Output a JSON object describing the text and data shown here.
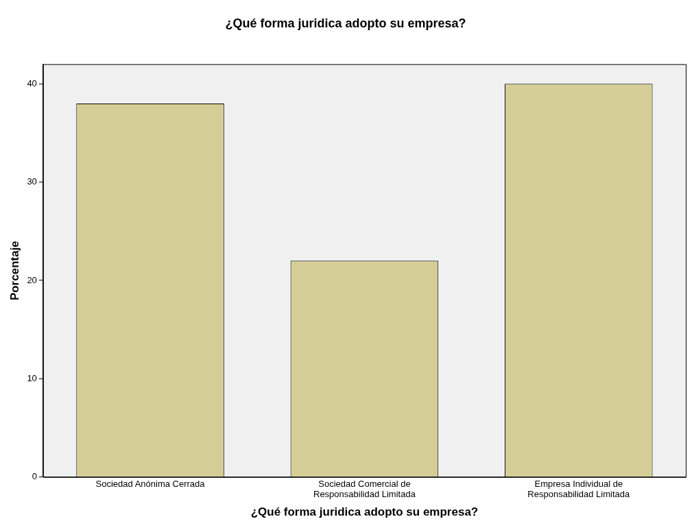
{
  "chart_data": {
    "type": "bar",
    "title": "¿Qué forma juridica adopto su empresa?",
    "xlabel": "¿Qué forma juridica adopto su empresa?",
    "ylabel": "Porcentaje",
    "categories": [
      "Sociedad Anónima Cerrada",
      "Sociedad Comercial de Responsabilidad Limitada",
      "Empresa Individual de Responsabilidad Limitada"
    ],
    "values": [
      38,
      22,
      40
    ],
    "color": "#d4ce96",
    "ylim": [
      0,
      42
    ],
    "yticks": [
      0,
      10,
      20,
      30,
      40
    ],
    "grid": false,
    "legend": false
  }
}
